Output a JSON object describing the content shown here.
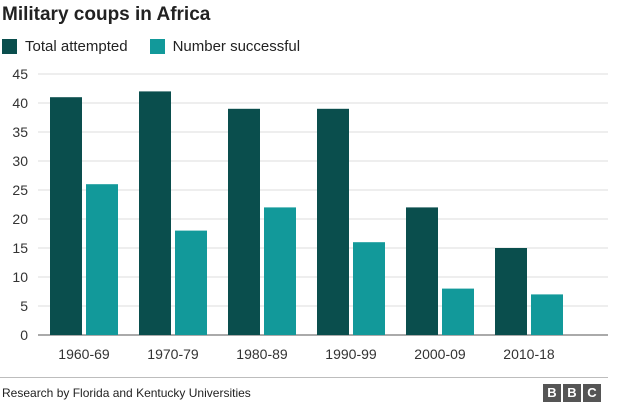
{
  "title": "Military coups in Africa",
  "legend": {
    "series0": "Total attempted",
    "series1": "Number successful"
  },
  "source": "Research by Florida and Kentucky Universities",
  "logo": {
    "letters": [
      "B",
      "B",
      "C"
    ]
  },
  "colors": {
    "total": "#0a4e4d",
    "successful": "#12999a",
    "grid": "#dcdcdc",
    "axis": "#555555"
  },
  "chart_data": {
    "type": "bar",
    "title": "Military coups in Africa",
    "categories": [
      "1960-69",
      "1970-79",
      "1980-89",
      "1990-99",
      "2000-09",
      "2010-18"
    ],
    "series": [
      {
        "name": "Total attempted",
        "values": [
          41,
          42,
          39,
          39,
          22,
          15
        ]
      },
      {
        "name": "Number successful",
        "values": [
          26,
          18,
          22,
          16,
          8,
          7
        ]
      }
    ],
    "ylim": [
      0,
      45
    ],
    "yticks": [
      0,
      5,
      10,
      15,
      20,
      25,
      30,
      35,
      40,
      45
    ],
    "grid": true,
    "legend": "top-left"
  }
}
